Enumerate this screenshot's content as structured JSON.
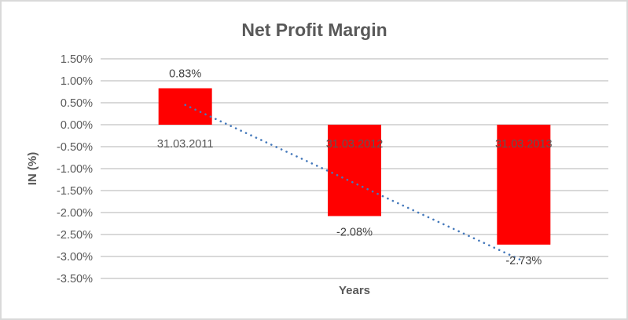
{
  "chart_data": {
    "type": "bar",
    "title": "Net Profit Margin",
    "xlabel": "Years",
    "ylabel": "IN (%)",
    "categories": [
      "31.03.2011",
      "31.03.2012",
      "31.03.2013"
    ],
    "values": [
      0.83,
      -2.08,
      -2.73
    ],
    "data_labels": [
      "0.83%",
      "-2.08%",
      "-2.73%"
    ],
    "y_tick_values": [
      1.5,
      1.0,
      0.5,
      0.0,
      -0.5,
      -1.0,
      -1.5,
      -2.0,
      -2.5,
      -3.0,
      -3.5
    ],
    "y_tick_labels": [
      "1.50%",
      "1.00%",
      "0.50%",
      "0.00%",
      "-0.50%",
      "-1.00%",
      "-1.50%",
      "-2.00%",
      "-2.50%",
      "-3.00%",
      "-3.50%"
    ],
    "ylim": [
      -3.5,
      1.5
    ],
    "grid": true,
    "legend": "none",
    "trendline": {
      "type": "linear",
      "style": "dotted",
      "fitted_values": [
        0.45,
        -1.33,
        -3.11
      ]
    },
    "colors": {
      "bar": "#FF0000",
      "trendline": "#4579BB",
      "title": "#595959",
      "axis_text": "#595959",
      "data_label_text": "#404040",
      "gridline": "#D9D9D9",
      "frame_border": "#D9D9D9",
      "background": "#FFFFFF"
    }
  }
}
